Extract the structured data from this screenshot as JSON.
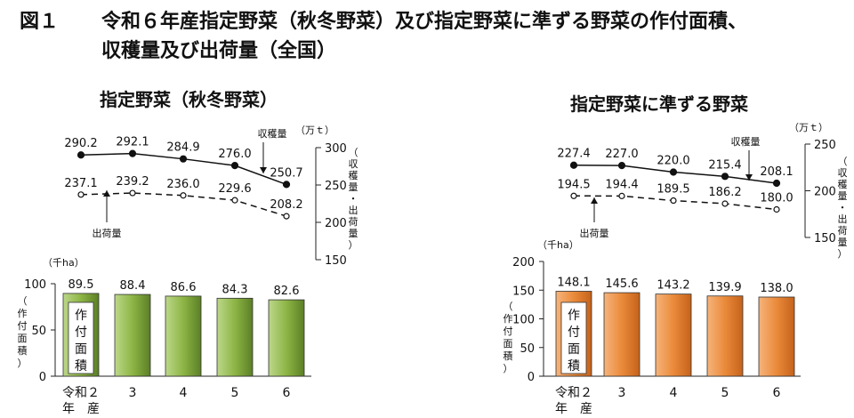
{
  "figure": {
    "number": "図１",
    "title_line1": "令和６年産指定野菜（秋冬野菜）及び指定野菜に準ずる野菜の作付面積、",
    "title_line2": "収穫量及び出荷量（全国）"
  },
  "chart_data": [
    {
      "type": "line",
      "title": "指定野菜（秋冬野菜）",
      "x": [
        "令和２年産",
        "3",
        "4",
        "5",
        "6"
      ],
      "series": [
        {
          "name": "収穫量",
          "values": [
            290.2,
            292.1,
            284.9,
            276.0,
            250.7
          ],
          "labels": [
            "290.2",
            "292.1",
            "284.9",
            "276.0",
            "250.7"
          ],
          "style": "solid-filled-marker"
        },
        {
          "name": "出荷量",
          "values": [
            237.1,
            239.2,
            236.0,
            229.6,
            208.2
          ],
          "labels": [
            "237.1",
            "239.2",
            "236.0",
            "229.6",
            "208.2"
          ],
          "style": "dashed-open-marker"
        }
      ],
      "ylim": [
        150,
        300
      ],
      "yticks": [
        "150",
        "200",
        "250",
        "300"
      ],
      "ylabel": "（収穫量・出荷量）",
      "yunit": "（万ｔ）",
      "axis_side": "right"
    },
    {
      "type": "bar",
      "title": "指定野菜（秋冬野菜）",
      "categories": [
        "令和２年産",
        "3",
        "4",
        "5",
        "6"
      ],
      "category_labels": [
        [
          "令和２",
          "年　産"
        ],
        [
          "3"
        ],
        [
          "4"
        ],
        [
          "5"
        ],
        [
          "6"
        ]
      ],
      "values": [
        89.5,
        88.4,
        86.6,
        84.3,
        82.6
      ],
      "labels": [
        "89.5",
        "88.4",
        "86.6",
        "84.3",
        "82.6"
      ],
      "ylim": [
        0,
        100
      ],
      "yticks": [
        "0",
        "50",
        "100"
      ],
      "ylabel": "（作付面積）",
      "yunit": "（千ha）",
      "bar_label": "作付面積",
      "color": "#7fa23a"
    },
    {
      "type": "line",
      "title": "指定野菜に準ずる野菜",
      "x": [
        "令和２年産",
        "3",
        "4",
        "5",
        "6"
      ],
      "series": [
        {
          "name": "収穫量",
          "values": [
            227.4,
            227.0,
            220.0,
            215.4,
            208.1
          ],
          "labels": [
            "227.4",
            "227.0",
            "220.0",
            "215.4",
            "208.1"
          ],
          "style": "solid-filled-marker"
        },
        {
          "name": "出荷量",
          "values": [
            194.5,
            194.4,
            189.5,
            186.2,
            180.0
          ],
          "labels": [
            "194.5",
            "194.4",
            "189.5",
            "186.2",
            "180.0"
          ],
          "style": "dashed-open-marker"
        }
      ],
      "ylim": [
        150,
        250
      ],
      "yticks": [
        "150",
        "200",
        "250"
      ],
      "ylabel": "（収穫量・出荷量）",
      "yunit": "（万ｔ）",
      "axis_side": "right"
    },
    {
      "type": "bar",
      "title": "指定野菜に準ずる野菜",
      "categories": [
        "令和２年産",
        "3",
        "4",
        "5",
        "6"
      ],
      "category_labels": [
        [
          "令和２",
          "年　産"
        ],
        [
          "3"
        ],
        [
          "4"
        ],
        [
          "5"
        ],
        [
          "6"
        ]
      ],
      "values": [
        148.1,
        145.6,
        143.2,
        139.9,
        138.0
      ],
      "labels": [
        "148.1",
        "145.6",
        "143.2",
        "139.9",
        "138.0"
      ],
      "ylim": [
        0,
        200
      ],
      "yticks": [
        "0",
        "50",
        "100",
        "150",
        "200"
      ],
      "ylabel": "（作付面積）",
      "yunit": "（千ha）",
      "bar_label": "作付面積",
      "color": "#e0782a"
    }
  ]
}
